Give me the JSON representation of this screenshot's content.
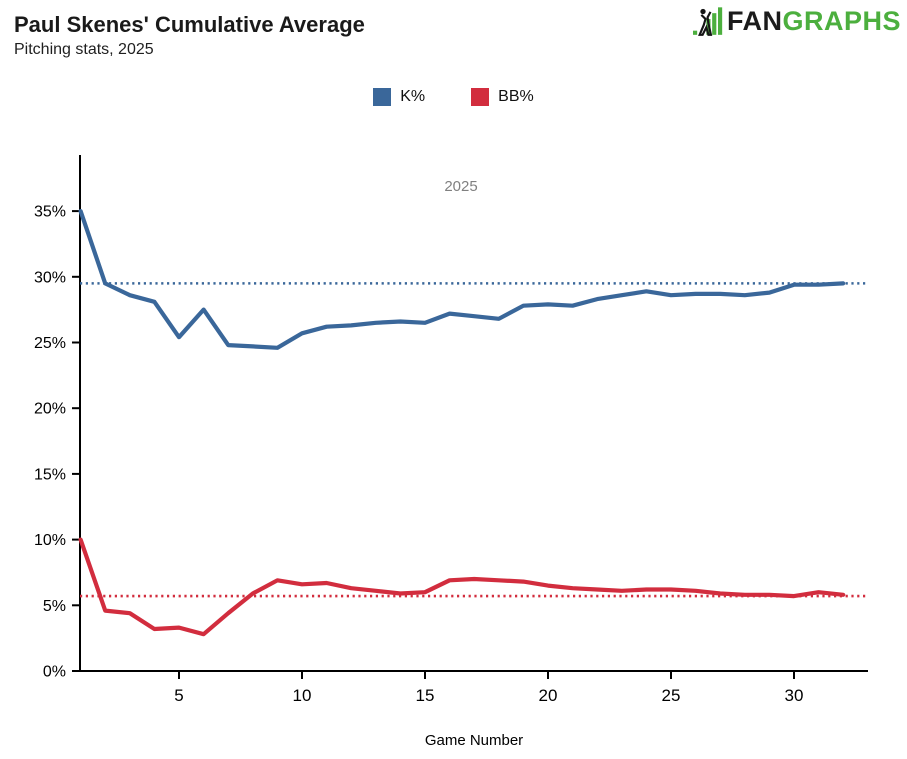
{
  "header": {
    "title": "Paul Skenes' Cumulative Average",
    "subtitle": "Pitching stats, 2025",
    "logo": {
      "fan": "FAN",
      "graphs": "GRAPHS",
      "green": "#4caf3e"
    }
  },
  "legend": {
    "items": [
      {
        "label": "K%",
        "color": "#3a679a"
      },
      {
        "label": "BB%",
        "color": "#d22d3e"
      }
    ]
  },
  "chart_data": {
    "type": "line",
    "annotation": "2025",
    "annotation_color": "#808080",
    "xlabel": "Game Number",
    "xlim": [
      1,
      33
    ],
    "ylim": [
      0,
      39.3
    ],
    "grid": false,
    "legend_position": "top-center",
    "x_ticks": [
      5,
      10,
      15,
      20,
      25,
      30
    ],
    "y_ticks": [
      {
        "value": 0,
        "label": "0%"
      },
      {
        "value": 5,
        "label": "5%"
      },
      {
        "value": 10,
        "label": "10%"
      },
      {
        "value": 15,
        "label": "15%"
      },
      {
        "value": 20,
        "label": "20%"
      },
      {
        "value": 25,
        "label": "25%"
      },
      {
        "value": 30,
        "label": "30%"
      },
      {
        "value": 35,
        "label": "35%"
      }
    ],
    "x": [
      1,
      2,
      3,
      4,
      5,
      6,
      7,
      8,
      9,
      10,
      11,
      12,
      13,
      14,
      15,
      16,
      17,
      18,
      19,
      20,
      21,
      22,
      23,
      24,
      25,
      26,
      27,
      28,
      29,
      30,
      31,
      32
    ],
    "series": [
      {
        "name": "K%",
        "color": "#3a679a",
        "reference_line": 29.5,
        "values": [
          35.0,
          29.5,
          28.6,
          28.1,
          25.4,
          27.5,
          24.8,
          24.7,
          24.6,
          25.7,
          26.2,
          26.3,
          26.5,
          26.6,
          26.5,
          27.2,
          27.0,
          26.8,
          27.8,
          27.9,
          27.8,
          28.3,
          28.6,
          28.9,
          28.6,
          28.7,
          28.7,
          28.6,
          28.8,
          29.4,
          29.4,
          29.5
        ]
      },
      {
        "name": "BB%",
        "color": "#d22d3e",
        "reference_line": 5.7,
        "values": [
          10.0,
          4.6,
          4.4,
          3.2,
          3.3,
          2.8,
          4.4,
          5.9,
          6.9,
          6.6,
          6.7,
          6.3,
          6.1,
          5.9,
          6.0,
          6.9,
          7.0,
          6.9,
          6.8,
          6.5,
          6.3,
          6.2,
          6.1,
          6.2,
          6.2,
          6.1,
          5.9,
          5.8,
          5.8,
          5.7,
          6.0,
          5.8
        ]
      }
    ]
  }
}
